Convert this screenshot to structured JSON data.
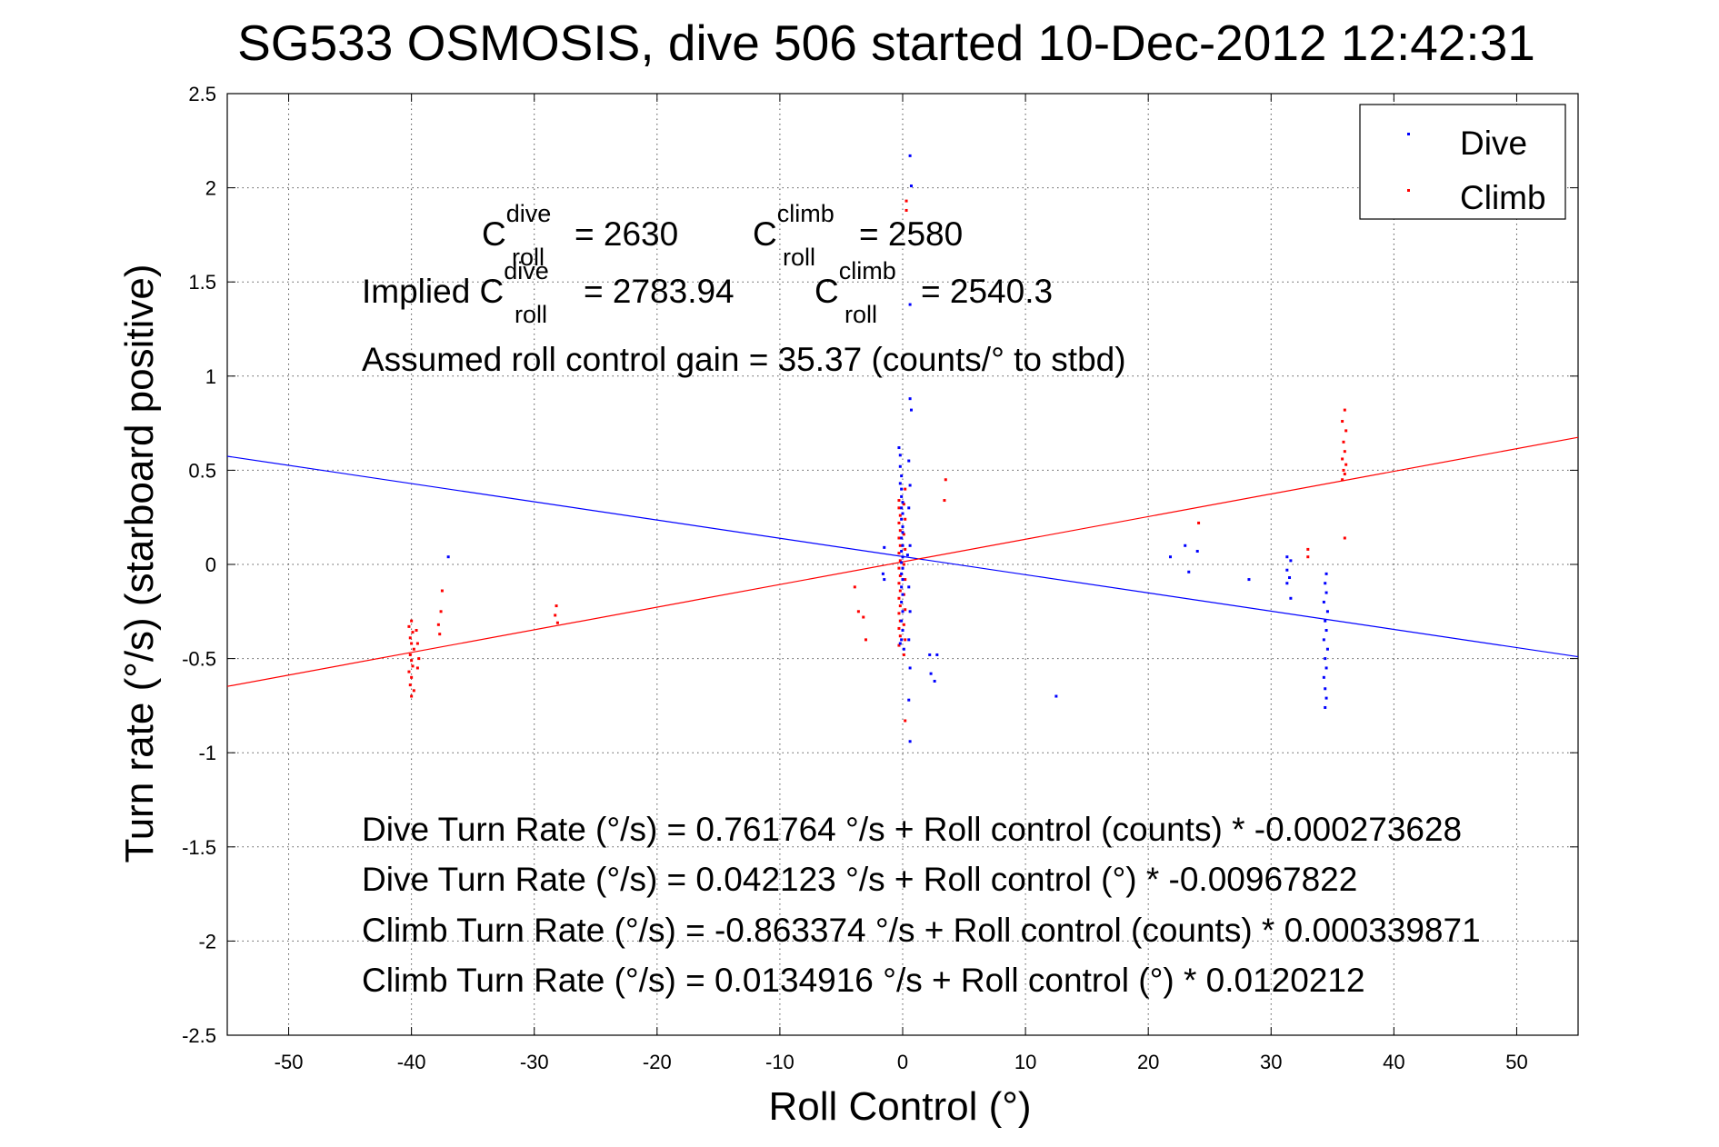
{
  "chart_data": {
    "type": "scatter",
    "title": "SG533 OSMOSIS, dive 506 started 10-Dec-2012 12:42:31",
    "xlabel": "Roll Control (°)",
    "ylabel": "Turn rate (°/s)  (starboard positive)",
    "xlim": [
      -55,
      55
    ],
    "ylim": [
      -2.5,
      2.5
    ],
    "xticks": [
      -50,
      -40,
      -30,
      -20,
      -10,
      0,
      10,
      20,
      30,
      40,
      50
    ],
    "yticks": [
      -2.5,
      -2,
      -1.5,
      -1,
      -0.5,
      0,
      0.5,
      1,
      1.5,
      2,
      2.5
    ],
    "xtick_labels": [
      "-50",
      "-40",
      "-30",
      "-20",
      "-10",
      "0",
      "10",
      "20",
      "30",
      "40",
      "50"
    ],
    "ytick_labels": [
      "-2.5",
      "-2",
      "-1.5",
      "-1",
      "-0.5",
      "0",
      "0.5",
      "1",
      "1.5",
      "2",
      "2.5"
    ],
    "grid": true,
    "legend_position": "top-right",
    "colors": {
      "dive": "#0000ff",
      "climb": "#ff0000"
    },
    "series": [
      {
        "name": "Dive",
        "color": "#0000ff",
        "points": [
          [
            -37,
            0.04
          ],
          [
            -1.5,
            0.09
          ],
          [
            -1.6,
            -0.05
          ],
          [
            -1.5,
            -0.08
          ],
          [
            -0.3,
            0.62
          ],
          [
            -0.2,
            0.58
          ],
          [
            -0.2,
            0.52
          ],
          [
            -0.1,
            0.47
          ],
          [
            -0.2,
            0.43
          ],
          [
            -0.1,
            0.4
          ],
          [
            -0.1,
            0.36
          ],
          [
            0.0,
            0.33
          ],
          [
            -0.1,
            0.3
          ],
          [
            0.0,
            0.27
          ],
          [
            -0.1,
            0.24
          ],
          [
            0.0,
            0.2
          ],
          [
            0.0,
            0.17
          ],
          [
            -0.1,
            0.14
          ],
          [
            0.0,
            0.1
          ],
          [
            -0.1,
            0.07
          ],
          [
            0.0,
            0.04
          ],
          [
            -0.1,
            0.01
          ],
          [
            0.0,
            -0.02
          ],
          [
            -0.1,
            -0.05
          ],
          [
            0.0,
            -0.08
          ],
          [
            -0.1,
            -0.12
          ],
          [
            0.0,
            -0.16
          ],
          [
            -0.1,
            -0.2
          ],
          [
            0.0,
            -0.25
          ],
          [
            -0.1,
            -0.3
          ],
          [
            0.0,
            -0.35
          ],
          [
            -0.1,
            -0.4
          ],
          [
            -0.2,
            -0.42
          ],
          [
            0.1,
            -0.45
          ],
          [
            0.6,
            2.17
          ],
          [
            0.7,
            2.01
          ],
          [
            0.6,
            1.38
          ],
          [
            0.6,
            0.88
          ],
          [
            0.7,
            0.82
          ],
          [
            0.5,
            0.55
          ],
          [
            0.6,
            0.42
          ],
          [
            0.5,
            0.3
          ],
          [
            0.6,
            0.1
          ],
          [
            0.4,
            0.05
          ],
          [
            0.5,
            -0.12
          ],
          [
            0.6,
            -0.25
          ],
          [
            0.5,
            -0.4
          ],
          [
            0.6,
            -0.55
          ],
          [
            0.5,
            -0.72
          ],
          [
            0.6,
            -0.94
          ],
          [
            2.2,
            -0.48
          ],
          [
            2.8,
            -0.48
          ],
          [
            2.3,
            -0.58
          ],
          [
            2.6,
            -0.62
          ],
          [
            12.5,
            -0.7
          ],
          [
            21.8,
            0.04
          ],
          [
            23.0,
            0.1
          ],
          [
            23.3,
            -0.04
          ],
          [
            24.0,
            0.07
          ],
          [
            28.2,
            -0.08
          ],
          [
            31.3,
            0.04
          ],
          [
            31.6,
            0.02
          ],
          [
            31.3,
            -0.03
          ],
          [
            31.5,
            -0.07
          ],
          [
            31.3,
            -0.1
          ],
          [
            31.6,
            -0.18
          ],
          [
            34.4,
            -0.1
          ],
          [
            34.5,
            -0.15
          ],
          [
            34.3,
            -0.2
          ],
          [
            34.6,
            -0.25
          ],
          [
            34.4,
            -0.3
          ],
          [
            34.5,
            -0.35
          ],
          [
            34.3,
            -0.4
          ],
          [
            34.6,
            -0.45
          ],
          [
            34.4,
            -0.5
          ],
          [
            34.5,
            -0.55
          ],
          [
            34.3,
            -0.6
          ],
          [
            34.4,
            -0.66
          ],
          [
            34.5,
            -0.71
          ],
          [
            34.4,
            -0.76
          ],
          [
            34.5,
            -0.05
          ]
        ],
        "fit": {
          "intercept": 0.042123,
          "slope": -0.00967822
        }
      },
      {
        "name": "Climb",
        "color": "#ff0000",
        "points": [
          [
            -40,
            -0.3
          ],
          [
            -40.2,
            -0.33
          ],
          [
            -39.9,
            -0.36
          ],
          [
            -40.1,
            -0.39
          ],
          [
            -40,
            -0.42
          ],
          [
            -39.8,
            -0.45
          ],
          [
            -40.1,
            -0.48
          ],
          [
            -40,
            -0.51
          ],
          [
            -39.9,
            -0.54
          ],
          [
            -40.2,
            -0.57
          ],
          [
            -40,
            -0.6
          ],
          [
            -40.1,
            -0.64
          ],
          [
            -39.8,
            -0.67
          ],
          [
            -40,
            -0.7
          ],
          [
            -39.6,
            -0.35
          ],
          [
            -39.5,
            -0.42
          ],
          [
            -39.4,
            -0.5
          ],
          [
            -39.5,
            -0.55
          ],
          [
            -37.5,
            -0.14
          ],
          [
            -37.6,
            -0.25
          ],
          [
            -37.8,
            -0.32
          ],
          [
            -37.7,
            -0.37
          ],
          [
            -28.2,
            -0.22
          ],
          [
            -28.3,
            -0.27
          ],
          [
            -28.1,
            -0.31
          ],
          [
            -3.9,
            -0.12
          ],
          [
            -3.6,
            -0.25
          ],
          [
            -3.2,
            -0.28
          ],
          [
            -3.0,
            -0.4
          ],
          [
            -0.3,
            0.34
          ],
          [
            -0.3,
            0.3
          ],
          [
            -0.2,
            0.26
          ],
          [
            -0.3,
            0.22
          ],
          [
            -0.2,
            0.18
          ],
          [
            -0.3,
            0.14
          ],
          [
            -0.2,
            0.1
          ],
          [
            -0.3,
            0.06
          ],
          [
            -0.2,
            0.02
          ],
          [
            -0.3,
            -0.02
          ],
          [
            -0.2,
            -0.06
          ],
          [
            -0.3,
            -0.1
          ],
          [
            -0.2,
            -0.14
          ],
          [
            -0.3,
            -0.18
          ],
          [
            -0.2,
            -0.22
          ],
          [
            -0.3,
            -0.26
          ],
          [
            -0.2,
            -0.3
          ],
          [
            -0.3,
            -0.34
          ],
          [
            -0.2,
            -0.38
          ],
          [
            -0.3,
            -0.43
          ],
          [
            0.2,
            0.4
          ],
          [
            0.1,
            0.32
          ],
          [
            0.2,
            0.24
          ],
          [
            0.1,
            0.16
          ],
          [
            0.2,
            0.08
          ],
          [
            0.1,
            0.0
          ],
          [
            0.2,
            -0.08
          ],
          [
            0.1,
            -0.16
          ],
          [
            0.2,
            -0.24
          ],
          [
            0.1,
            -0.32
          ],
          [
            0.2,
            -0.4
          ],
          [
            0.1,
            -0.48
          ],
          [
            0.3,
            1.93
          ],
          [
            0.3,
            1.88
          ],
          [
            0.2,
            -0.83
          ],
          [
            3.4,
            0.34
          ],
          [
            3.5,
            0.45
          ],
          [
            24.1,
            0.22
          ],
          [
            33.0,
            0.08
          ],
          [
            33.0,
            0.04
          ],
          [
            36.0,
            0.82
          ],
          [
            35.8,
            0.76
          ],
          [
            36.1,
            0.71
          ],
          [
            35.9,
            0.65
          ],
          [
            36.0,
            0.6
          ],
          [
            35.8,
            0.56
          ],
          [
            36.1,
            0.53
          ],
          [
            35.9,
            0.5
          ],
          [
            36.0,
            0.48
          ],
          [
            35.8,
            0.45
          ],
          [
            36.0,
            0.14
          ]
        ],
        "fit": {
          "intercept": 0.0134916,
          "slope": 0.0120212
        }
      }
    ],
    "annotations": {
      "c_roll_dive": {
        "base": "C",
        "sup": "dive",
        "sub": "roll",
        "value": "= 2630"
      },
      "c_roll_climb": {
        "base": "C",
        "sup": "climb",
        "sub": "roll",
        "value": "= 2580"
      },
      "implied_prefix": "Implied C",
      "implied_dive": {
        "sup": "dive",
        "sub": "roll",
        "value": "= 2783.94"
      },
      "implied_climb": {
        "base": "C",
        "sup": "climb",
        "sub": "roll",
        "value": "= 2540.3"
      },
      "gain": "Assumed roll control gain = 35.37 (counts/° to stbd)",
      "eq_lines": [
        "Dive Turn Rate (°/s) = 0.761764 °/s + Roll control (counts) * -0.000273628",
        "Dive Turn Rate (°/s) = 0.042123 °/s + Roll control (°) * -0.00967822",
        "Climb Turn Rate (°/s) = -0.863374 °/s + Roll control (counts) * 0.000339871",
        "Climb Turn Rate (°/s) = 0.0134916 °/s + Roll control (°) * 0.0120212"
      ]
    }
  }
}
